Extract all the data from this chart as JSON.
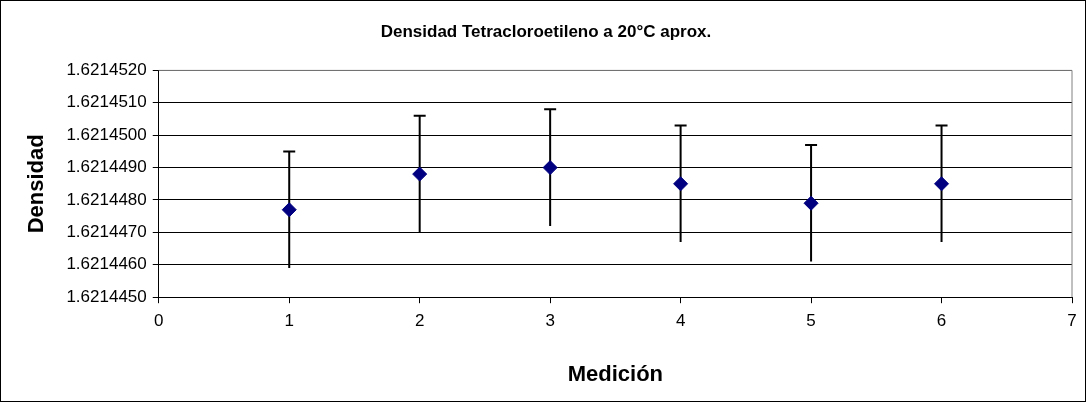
{
  "chart_data": {
    "type": "scatter",
    "title": "Densidad Tetracloroetileno a 20°C aprox.",
    "xlabel": "Medición",
    "ylabel": "Densidad",
    "x": [
      1,
      2,
      3,
      4,
      5,
      6
    ],
    "values": [
      1.6214477,
      1.6214488,
      1.621449,
      1.6214485,
      1.6214479,
      1.6214485
    ],
    "errors": [
      1.8e-06,
      1.8e-06,
      1.8e-06,
      1.8e-06,
      1.8e-06,
      1.8e-06
    ],
    "color": "#000080",
    "marker": "diamond",
    "grid": "y",
    "legend": false,
    "xlim": [
      0,
      7
    ],
    "xticks": [
      0,
      1,
      2,
      3,
      4,
      5,
      6,
      7
    ],
    "ylim": [
      1.621445,
      1.621452
    ],
    "yticks": [
      {
        "value": 1.621445,
        "label": "1.6214450"
      },
      {
        "value": 1.621446,
        "label": "1.6214460"
      },
      {
        "value": 1.621447,
        "label": "1.6214470"
      },
      {
        "value": 1.621448,
        "label": "1.6214480"
      },
      {
        "value": 1.621449,
        "label": "1.6214490"
      },
      {
        "value": 1.62145,
        "label": "1.6214500"
      },
      {
        "value": 1.621451,
        "label": "1.6214510"
      },
      {
        "value": 1.621452,
        "label": "1.6214520"
      }
    ]
  }
}
